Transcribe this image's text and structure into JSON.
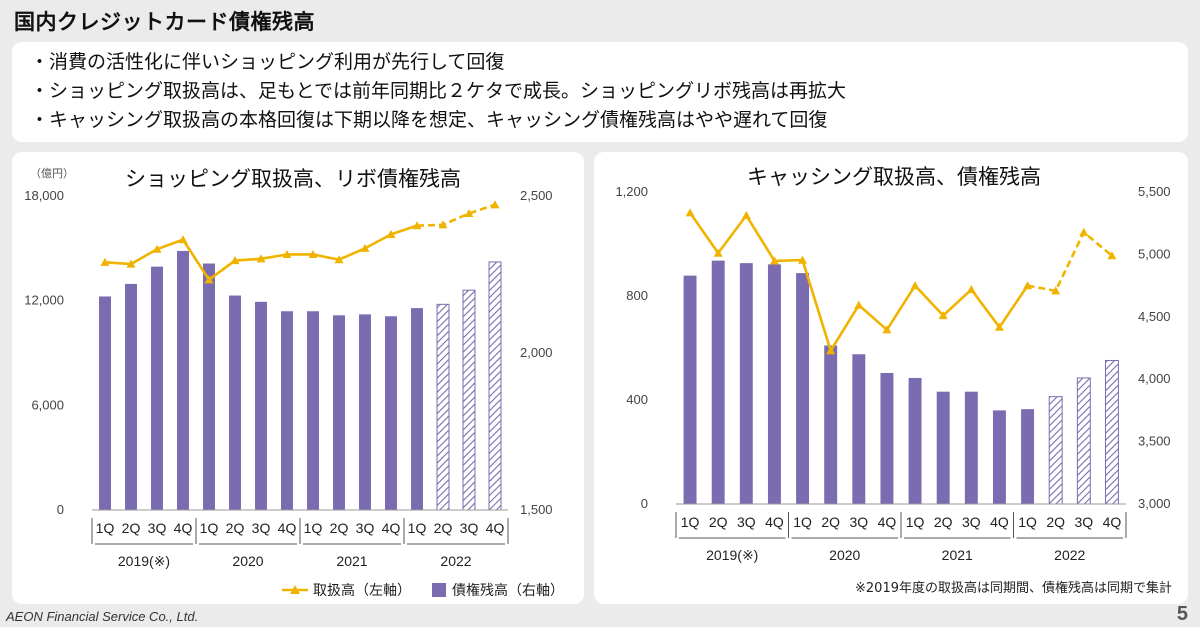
{
  "slide": {
    "title": "国内クレジットカード債権残高",
    "bullets": [
      "・消費の活性化に伴いショッピング利用が先行して回復",
      "・ショッピング取扱高は、足もとでは前年同期比２ケタで成長。ショッピングリボ残高は再拡大",
      "・キャッシング取扱高の本格回復は下期以降を想定、キャッシング債権残高はやや遅れて回復"
    ],
    "company": "AEON Financial Service Co., Ltd.",
    "page_number": "5"
  },
  "colors": {
    "bar": "#7b6bb0",
    "line": "#f0b400",
    "hatch": "#7b6bb0"
  },
  "chart_data": [
    {
      "type": "bar",
      "title": "ショッピング取扱高、リボ債権残高",
      "unit_label": "（億円）",
      "quarters": [
        "1Q",
        "2Q",
        "3Q",
        "4Q",
        "1Q",
        "2Q",
        "3Q",
        "4Q",
        "1Q",
        "2Q",
        "3Q",
        "4Q",
        "1Q",
        "2Q",
        "3Q",
        "4Q"
      ],
      "years": [
        "2019(※)",
        "2020",
        "2021",
        "2022"
      ],
      "y_left": {
        "min": 0,
        "max": 18000,
        "ticks": [
          "0",
          "6,000",
          "12,000",
          "18,000"
        ],
        "tick_values": [
          0,
          6000,
          12000,
          18000
        ]
      },
      "y_right": {
        "min": 1500,
        "max": 2500,
        "ticks": [
          "1,500",
          "2,000",
          "2,500"
        ],
        "tick_values": [
          1500,
          2000,
          2500
        ]
      },
      "series": [
        {
          "name": "取扱高（左軸）",
          "type": "line",
          "axis": "left",
          "forecast_from": 12,
          "values": [
            14200,
            14100,
            14950,
            15500,
            13200,
            14300,
            14400,
            14650,
            14650,
            14350,
            15000,
            15800,
            16300,
            16350,
            17000,
            17500
          ]
        },
        {
          "name": "債権残高（右軸）",
          "type": "bar",
          "axis": "right",
          "forecast_from": 13,
          "values": [
            2180,
            2220,
            2275,
            2325,
            2285,
            2183,
            2163,
            2133,
            2133,
            2120,
            2123,
            2117,
            2143,
            2155,
            2200,
            2290
          ]
        }
      ],
      "legend": [
        {
          "label": "取扱高（左軸）",
          "type": "line"
        },
        {
          "label": "債権残高（右軸）",
          "type": "bar"
        }
      ]
    },
    {
      "type": "bar",
      "title": "キャッシング取扱高、債権残高",
      "quarters": [
        "1Q",
        "2Q",
        "3Q",
        "4Q",
        "1Q",
        "2Q",
        "3Q",
        "4Q",
        "1Q",
        "2Q",
        "3Q",
        "4Q",
        "1Q",
        "2Q",
        "3Q",
        "4Q"
      ],
      "years": [
        "2019(※)",
        "2020",
        "2021",
        "2022"
      ],
      "y_left": {
        "min": 0,
        "max": 1200,
        "ticks": [
          "0",
          "400",
          "800",
          "1,200"
        ],
        "tick_values": [
          0,
          400,
          800,
          1200
        ]
      },
      "y_right": {
        "min": 3000,
        "max": 5500,
        "ticks": [
          "3,000",
          "3,500",
          "4,000",
          "4,500",
          "5,000",
          "5,500"
        ],
        "tick_values": [
          3000,
          3500,
          4000,
          4500,
          5000,
          5500
        ]
      },
      "series": [
        {
          "name": "取扱高",
          "type": "line",
          "axis": "left",
          "forecast_from": 12,
          "values": [
            1120,
            965,
            1110,
            935,
            938,
            590,
            765,
            670,
            840,
            725,
            825,
            680,
            840,
            820,
            1045,
            955
          ]
        },
        {
          "name": "債権残高",
          "type": "bar",
          "axis": "right",
          "forecast_from": 13,
          "values": [
            4830,
            4950,
            4930,
            4920,
            4850,
            4270,
            4200,
            4050,
            4010,
            3900,
            3900,
            3750,
            3760,
            3860,
            4010,
            4150
          ]
        }
      ],
      "footnote": "※2019年度の取扱高は同期間、債権残高は同期で集計"
    }
  ]
}
